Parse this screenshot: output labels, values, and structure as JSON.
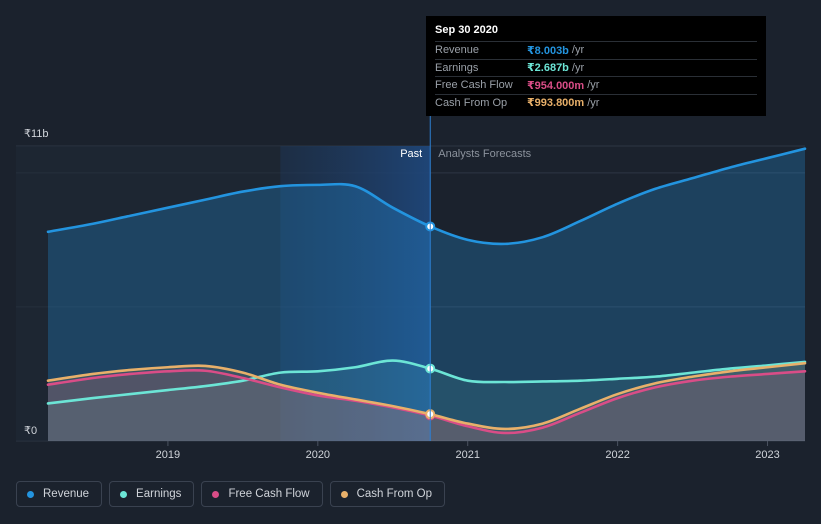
{
  "tooltip": {
    "date": "Sep 30 2020",
    "rows": [
      {
        "label": "Revenue",
        "value": "₹8.003b",
        "unit": "/yr",
        "color": "#2394df"
      },
      {
        "label": "Earnings",
        "value": "₹2.687b",
        "unit": "/yr",
        "color": "#6ce5d6"
      },
      {
        "label": "Free Cash Flow",
        "value": "₹954.000m",
        "unit": "/yr",
        "color": "#d94d87"
      },
      {
        "label": "Cash From Op",
        "value": "₹993.800m",
        "unit": "/yr",
        "color": "#e8b06a"
      }
    ]
  },
  "legend": [
    {
      "label": "Revenue",
      "color": "#2394df"
    },
    {
      "label": "Earnings",
      "color": "#6ce5d6"
    },
    {
      "label": "Free Cash Flow",
      "color": "#d94d87"
    },
    {
      "label": "Cash From Op",
      "color": "#e8b06a"
    }
  ],
  "chart_data": {
    "type": "area",
    "title": "",
    "y_top_label": "₹11b",
    "y_bottom_label": "₹0",
    "ylim": [
      0,
      11
    ],
    "xlim": [
      2018.2,
      2023.25
    ],
    "x_ticks": [
      2019,
      2020,
      2021,
      2022,
      2023
    ],
    "x_tick_labels": [
      "2019",
      "2020",
      "2021",
      "2022",
      "2023"
    ],
    "past_label": "Past",
    "forecast_label": "Analysts Forecasts",
    "divider_x": 2020.75,
    "highlight_start_x": 2019.75,
    "series": [
      {
        "name": "Revenue",
        "color": "#2394df",
        "x": [
          2018.2,
          2018.5,
          2018.75,
          2019.0,
          2019.25,
          2019.5,
          2019.75,
          2020.0,
          2020.25,
          2020.5,
          2020.75,
          2021.0,
          2021.25,
          2021.5,
          2021.75,
          2022.0,
          2022.25,
          2022.5,
          2022.75,
          2023.0,
          2023.25
        ],
        "y": [
          7.8,
          8.1,
          8.4,
          8.7,
          9.0,
          9.3,
          9.5,
          9.55,
          9.5,
          8.7,
          8.0,
          7.5,
          7.35,
          7.6,
          8.2,
          8.85,
          9.4,
          9.8,
          10.2,
          10.55,
          10.9
        ]
      },
      {
        "name": "Earnings",
        "color": "#6ce5d6",
        "x": [
          2018.2,
          2018.5,
          2018.75,
          2019.0,
          2019.25,
          2019.5,
          2019.75,
          2020.0,
          2020.25,
          2020.5,
          2020.75,
          2021.0,
          2021.25,
          2021.5,
          2021.75,
          2022.0,
          2022.25,
          2022.5,
          2022.75,
          2023.0,
          2023.25
        ],
        "y": [
          1.4,
          1.6,
          1.75,
          1.9,
          2.05,
          2.25,
          2.55,
          2.6,
          2.75,
          3.0,
          2.7,
          2.25,
          2.2,
          2.22,
          2.25,
          2.32,
          2.4,
          2.55,
          2.7,
          2.82,
          2.95
        ]
      },
      {
        "name": "Free Cash Flow",
        "color": "#d94d87",
        "x": [
          2018.2,
          2018.5,
          2018.75,
          2019.0,
          2019.25,
          2019.5,
          2019.75,
          2020.0,
          2020.25,
          2020.5,
          2020.75,
          2021.0,
          2021.25,
          2021.5,
          2021.75,
          2022.0,
          2022.25,
          2022.5,
          2022.75,
          2023.0,
          2023.25
        ],
        "y": [
          2.1,
          2.35,
          2.5,
          2.6,
          2.62,
          2.35,
          2.0,
          1.7,
          1.5,
          1.25,
          0.95,
          0.55,
          0.3,
          0.5,
          1.05,
          1.6,
          2.0,
          2.25,
          2.4,
          2.5,
          2.6
        ]
      },
      {
        "name": "Cash From Op",
        "color": "#e8b06a",
        "x": [
          2018.2,
          2018.5,
          2018.75,
          2019.0,
          2019.25,
          2019.5,
          2019.75,
          2020.0,
          2020.25,
          2020.5,
          2020.75,
          2021.0,
          2021.25,
          2021.5,
          2021.75,
          2022.0,
          2022.25,
          2022.5,
          2022.75,
          2023.0,
          2023.25
        ],
        "y": [
          2.25,
          2.5,
          2.65,
          2.75,
          2.8,
          2.55,
          2.1,
          1.8,
          1.55,
          1.3,
          1.0,
          0.65,
          0.45,
          0.65,
          1.2,
          1.75,
          2.15,
          2.4,
          2.6,
          2.75,
          2.9
        ]
      }
    ]
  }
}
